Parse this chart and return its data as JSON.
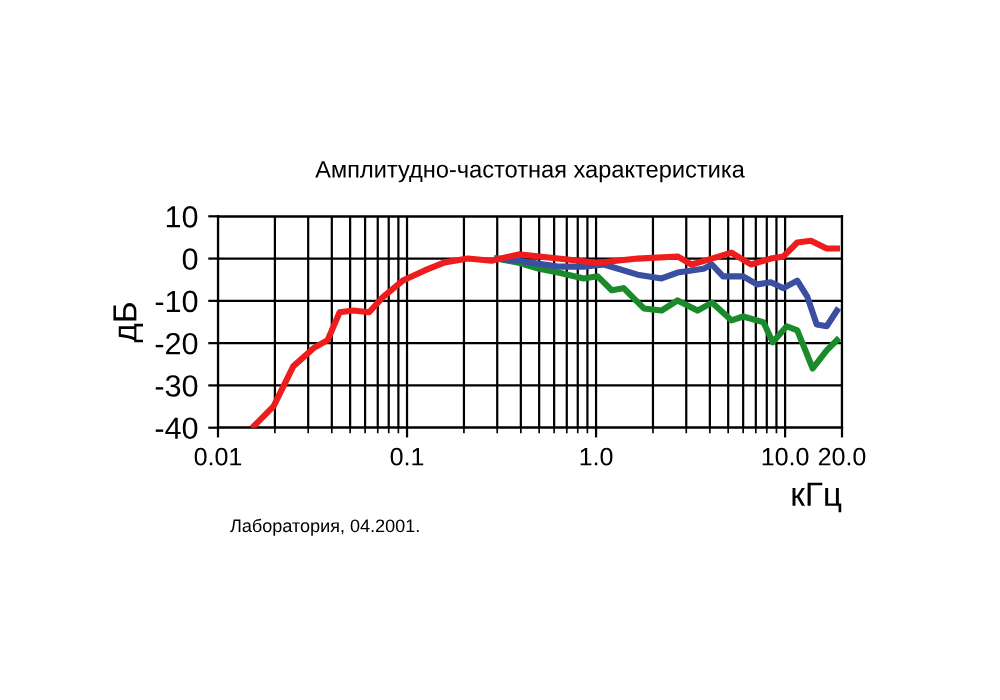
{
  "chart_data": {
    "type": "line",
    "title": "Амплитудно-частотная характеристика",
    "xlabel": "кГц",
    "ylabel": "дБ",
    "annotations": [
      "Лаборатория, 04.2001."
    ],
    "log": "x",
    "grid": true,
    "line_style": "solid",
    "xlim": [
      0.01,
      20
    ],
    "ylim": [
      -40,
      10
    ],
    "xticks": [
      0.01,
      0.1,
      {
        "value": 1,
        "label": "1.0"
      },
      {
        "value": 10,
        "label": "10.0"
      },
      {
        "value": 20,
        "label": "20.0"
      }
    ],
    "yticks": [
      -40,
      -30,
      -20,
      -10,
      0,
      10
    ],
    "series": [
      {
        "color": "#ee1c1c",
        "x": [
          0.0155,
          0.0197,
          0.025,
          0.032,
          0.038,
          0.044,
          0.052,
          0.063,
          0.075,
          0.095,
          0.124,
          0.158,
          0.21,
          0.28,
          0.39,
          0.63,
          1.02,
          1.66,
          2.7,
          3.2,
          4.1,
          5.2,
          6.6,
          8.4,
          9.8,
          11.6,
          13.7,
          16.6,
          18.8
        ],
        "values": [
          -39.6,
          -34.9,
          -25.5,
          -21.2,
          -19.3,
          -12.7,
          -12.3,
          -12.7,
          -9,
          -5.2,
          -2.8,
          -0.9,
          0,
          -0.5,
          1,
          0,
          -1,
          0,
          0.5,
          -1.4,
          0,
          1.4,
          -1.4,
          0,
          0.5,
          3.8,
          4.2,
          2.4,
          2.4
        ]
      },
      {
        "color": "#3b4fa0",
        "x": [
          0.3,
          0.39,
          0.63,
          0.86,
          1.1,
          1.66,
          2.22,
          2.7,
          3.7,
          4.1,
          4.7,
          6.0,
          7.1,
          8.4,
          9.8,
          11.6,
          13.1,
          14.7,
          16.6,
          18.8
        ],
        "values": [
          0,
          -0.5,
          -1.9,
          -1.9,
          -1.4,
          -3.8,
          -4.7,
          -3.3,
          -2.4,
          -1.4,
          -4.2,
          -4.2,
          -6.1,
          -5.6,
          -7,
          -5.2,
          -9,
          -15.6,
          -16,
          -12.3
        ]
      },
      {
        "color": "#1a8a2a",
        "x": [
          0.3,
          0.39,
          0.5,
          0.63,
          0.86,
          1.02,
          1.21,
          1.4,
          1.79,
          2.22,
          2.7,
          3.44,
          4.1,
          5.2,
          6.0,
          7.7,
          8.6,
          10.2,
          11.6,
          14.0,
          16.6,
          18.8
        ],
        "values": [
          0,
          -1,
          -2.4,
          -3.3,
          -4.7,
          -4.2,
          -7.5,
          -7,
          -11.8,
          -12.3,
          -9.9,
          -12.3,
          -10.4,
          -14.6,
          -13.7,
          -15.1,
          -19.8,
          -16,
          -17,
          -26,
          -21.7,
          -19.3
        ]
      }
    ]
  }
}
